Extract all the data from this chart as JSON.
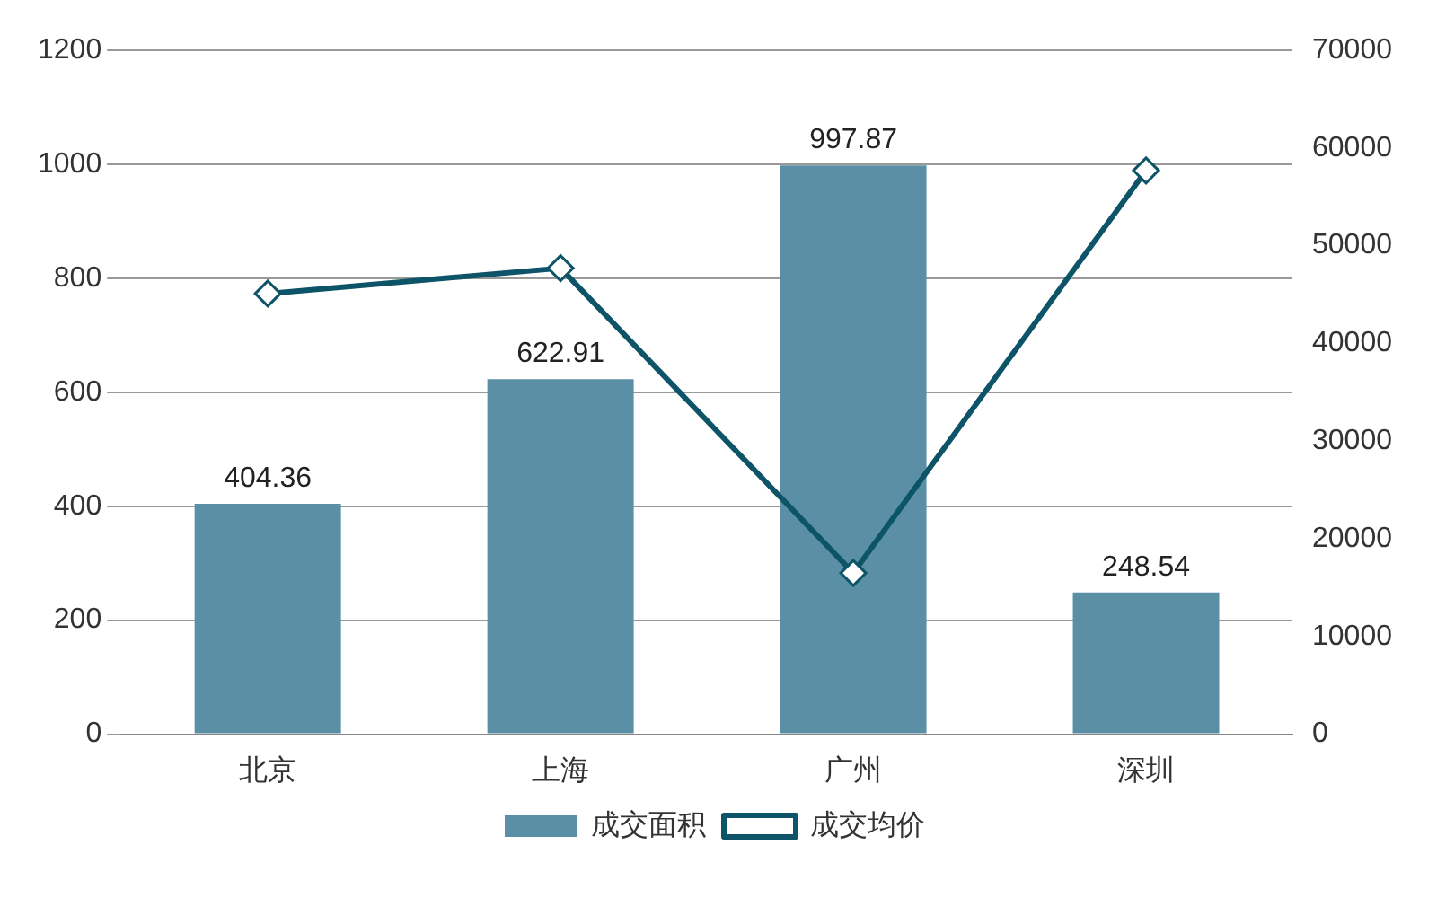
{
  "chart_data": {
    "type": "bar",
    "categories": [
      "北京",
      "上海",
      "广州",
      "深圳"
    ],
    "series": [
      {
        "name": "成交面积",
        "color": "#5b8fa6",
        "values": [
          404.36,
          622.91,
          997.87,
          248.54
        ],
        "value_labels": [
          "404.36",
          "622.91",
          "997.87",
          "248.54"
        ]
      },
      {
        "name": "成交均价",
        "type": "line",
        "axis": "y2",
        "color": "#0e5468",
        "marker": "diamond",
        "values": [
          45100,
          47700,
          16500,
          57700
        ]
      }
    ],
    "ylim": [
      0,
      1200
    ],
    "yticks": [
      0,
      200,
      400,
      600,
      800,
      1000,
      1200
    ],
    "y2lim": [
      0,
      70000
    ],
    "y2ticks": [
      0,
      10000,
      20000,
      30000,
      40000,
      50000,
      60000,
      70000
    ],
    "grid": "y",
    "legend": "bottom"
  }
}
